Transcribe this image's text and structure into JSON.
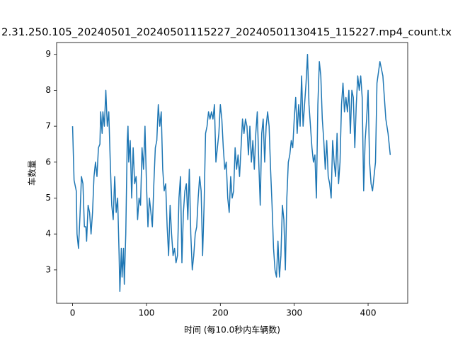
{
  "chart_data": {
    "type": "line",
    "title": "2.31.250.105_20240501_20240501115227_20240501130415_115227.mp4_count.tx",
    "x_label": "时间 (每10.0秒内车辆数)",
    "y_label": "车数量",
    "color": "#1f77b4",
    "x": [
      0,
      2,
      5,
      6,
      8,
      10,
      12,
      14,
      16,
      18,
      19,
      21,
      23,
      25,
      27,
      29,
      31,
      33,
      35,
      37,
      38,
      40,
      41,
      43,
      45,
      47,
      49,
      51,
      53,
      55,
      57,
      59,
      61,
      63,
      64,
      66,
      67,
      69,
      70,
      72,
      74,
      75,
      76,
      78,
      80,
      82,
      84,
      86,
      88,
      90,
      92,
      94,
      96,
      98,
      100,
      102,
      104,
      106,
      108,
      110,
      112,
      114,
      116,
      118,
      120,
      122,
      124,
      126,
      128,
      130,
      132,
      134,
      136,
      138,
      140,
      142,
      144,
      146,
      148,
      150,
      152,
      154,
      156,
      158,
      160,
      162,
      164,
      166,
      168,
      170,
      172,
      174,
      176,
      178,
      180,
      182,
      184,
      186,
      188,
      190,
      192,
      194,
      196,
      198,
      200,
      202,
      204,
      206,
      208,
      210,
      212,
      214,
      216,
      218,
      220,
      222,
      224,
      226,
      228,
      230,
      232,
      234,
      236,
      238,
      240,
      242,
      244,
      246,
      248,
      250,
      252,
      254,
      256,
      258,
      260,
      262,
      264,
      266,
      268,
      270,
      272,
      274,
      276,
      278,
      280,
      282,
      284,
      286,
      288,
      290,
      292,
      294,
      296,
      298,
      300,
      302,
      304,
      306,
      308,
      310,
      312,
      314,
      316,
      318,
      320,
      322,
      324,
      326,
      328,
      330,
      332,
      334,
      336,
      338,
      340,
      342,
      344,
      346,
      348,
      350,
      352,
      354,
      356,
      358,
      360,
      362,
      364,
      366,
      368,
      370,
      372,
      374,
      376,
      378,
      380,
      382,
      384,
      386,
      388,
      390,
      392,
      394,
      396,
      398,
      400,
      402,
      404,
      406,
      408,
      410,
      412,
      416,
      420,
      424,
      427,
      430
    ],
    "values": [
      7.0,
      5.5,
      5.2,
      4.0,
      3.6,
      4.5,
      5.6,
      5.4,
      4.2,
      4.2,
      3.8,
      4.8,
      4.6,
      4.0,
      4.6,
      5.6,
      6.0,
      5.6,
      6.4,
      6.5,
      7.4,
      6.8,
      7.4,
      7.0,
      8.0,
      7.0,
      7.4,
      6.0,
      4.8,
      4.4,
      5.6,
      4.6,
      5.0,
      3.4,
      2.4,
      3.6,
      2.8,
      3.6,
      2.6,
      4.0,
      6.6,
      7.0,
      6.0,
      6.6,
      5.0,
      6.4,
      5.4,
      5.6,
      4.4,
      5.0,
      4.8,
      6.4,
      5.8,
      7.0,
      5.4,
      4.2,
      5.0,
      4.6,
      4.2,
      5.4,
      6.4,
      6.6,
      7.6,
      7.0,
      7.4,
      5.8,
      5.2,
      5.4,
      4.2,
      3.4,
      4.8,
      4.0,
      3.4,
      3.6,
      3.2,
      3.4,
      5.0,
      5.6,
      3.2,
      4.6,
      5.2,
      5.4,
      4.4,
      5.8,
      4.0,
      3.0,
      3.4,
      4.0,
      4.2,
      5.0,
      5.6,
      5.2,
      3.4,
      4.8,
      6.8,
      7.0,
      7.4,
      7.2,
      7.4,
      7.2,
      7.6,
      6.0,
      6.4,
      6.8,
      7.6,
      7.2,
      6.4,
      5.8,
      6.0,
      5.0,
      4.6,
      5.6,
      5.0,
      5.2,
      6.4,
      5.8,
      6.2,
      5.6,
      6.4,
      7.2,
      6.8,
      7.2,
      7.0,
      6.2,
      7.0,
      6.0,
      6.6,
      5.8,
      6.8,
      7.4,
      6.0,
      4.8,
      6.8,
      7.2,
      6.0,
      7.0,
      7.4,
      7.0,
      5.8,
      4.8,
      3.6,
      3.0,
      2.8,
      3.8,
      2.8,
      3.4,
      4.8,
      4.4,
      3.0,
      5.0,
      6.0,
      6.2,
      6.6,
      6.4,
      7.2,
      7.8,
      6.8,
      7.6,
      7.0,
      8.4,
      7.0,
      7.6,
      8.2,
      9.0,
      7.6,
      7.0,
      6.4,
      6.0,
      6.2,
      5.0,
      7.6,
      8.8,
      8.4,
      7.2,
      6.6,
      5.8,
      6.6,
      5.6,
      5.4,
      5.0,
      6.6,
      6.0,
      5.6,
      6.8,
      5.4,
      6.0,
      7.6,
      8.2,
      7.4,
      7.8,
      7.4,
      8.0,
      6.8,
      8.0,
      7.8,
      6.4,
      7.6,
      8.4,
      8.0,
      8.4,
      7.8,
      5.2,
      6.6,
      7.2,
      8.0,
      6.0,
      5.4,
      5.2,
      5.6,
      6.0,
      8.2,
      8.8,
      8.4,
      7.2,
      6.8,
      6.2
    ],
    "xlim": [
      -21.6,
      453.6
    ],
    "xticks": [
      0,
      100,
      200,
      300,
      400
    ],
    "ylim": [
      2.07,
      9.33
    ],
    "yticks": [
      3,
      4,
      5,
      6,
      7,
      8,
      9
    ]
  }
}
